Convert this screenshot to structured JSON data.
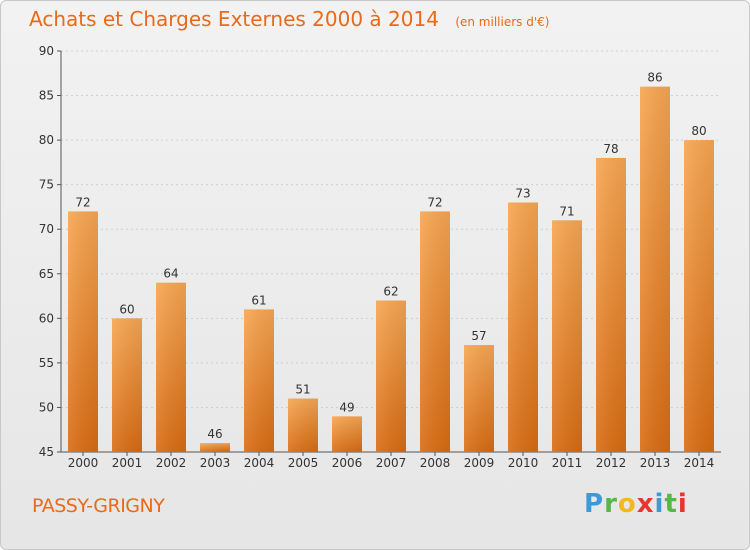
{
  "chart_data": {
    "type": "bar",
    "title": "Achats et Charges Externes 2000 à 2014",
    "unit_label": "(en milliers d'€)",
    "categories": [
      "2000",
      "2001",
      "2002",
      "2003",
      "2004",
      "2005",
      "2006",
      "2007",
      "2008",
      "2009",
      "2010",
      "2011",
      "2012",
      "2013",
      "2014"
    ],
    "values": [
      72,
      60,
      64,
      46,
      61,
      51,
      49,
      62,
      72,
      57,
      73,
      71,
      78,
      86,
      80
    ],
    "ylim": [
      45,
      90
    ],
    "yticks": [
      45,
      50,
      55,
      60,
      65,
      70,
      75,
      80,
      85,
      90
    ],
    "xlabel": "",
    "ylabel": "",
    "grid": true,
    "bar_color": "#f39a3c"
  },
  "place_name": "PASSY-GRIGNY",
  "logo": {
    "text": "Proxiti",
    "letters": [
      "P",
      "r",
      "o",
      "x",
      "i",
      "t",
      "i"
    ]
  }
}
